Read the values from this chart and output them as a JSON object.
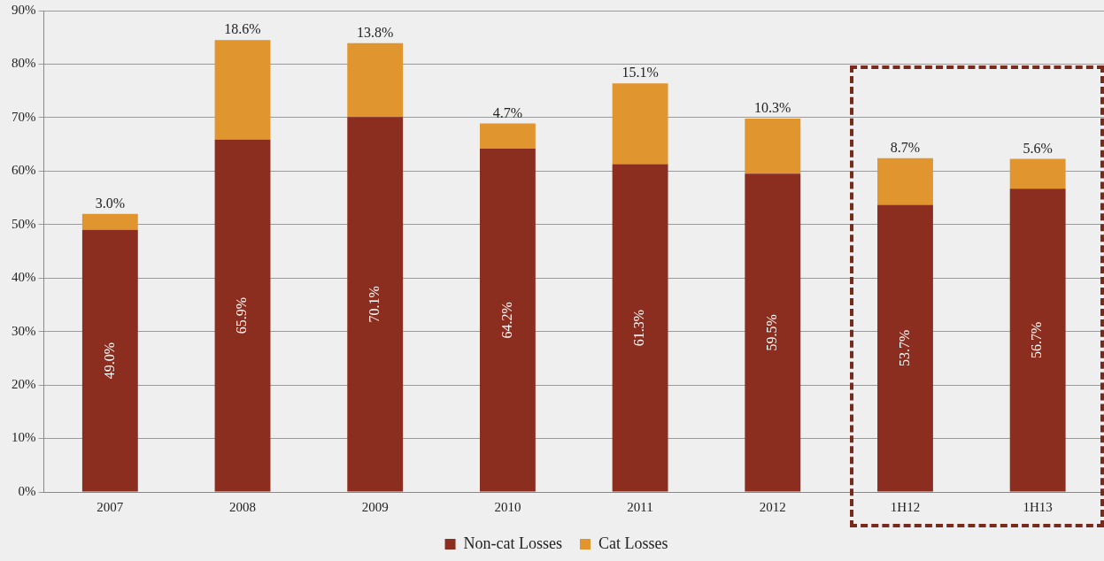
{
  "chart_data": {
    "type": "bar",
    "stacked": true,
    "categories": [
      "2007",
      "2008",
      "2009",
      "2010",
      "2011",
      "2012",
      "1H12",
      "1H13"
    ],
    "series": [
      {
        "name": "Non-cat Losses",
        "color": "#8b2e1f",
        "values": [
          49.0,
          65.9,
          70.1,
          64.2,
          61.3,
          59.5,
          53.7,
          56.7
        ],
        "value_labels": [
          "49.0%",
          "65.9%",
          "70.1%",
          "64.2%",
          "61.3%",
          "59.5%",
          "53.7%",
          "56.7%"
        ]
      },
      {
        "name": "Cat Losses",
        "color": "#e0952f",
        "values": [
          3.0,
          18.6,
          13.8,
          4.7,
          15.1,
          10.3,
          8.7,
          5.6
        ],
        "value_labels": [
          "3.0%",
          "18.6%",
          "13.8%",
          "4.7%",
          "15.1%",
          "10.3%",
          "8.7%",
          "5.6%"
        ]
      }
    ],
    "ylim": [
      0,
      90
    ],
    "yticks": [
      {
        "value": 0,
        "label": "0%"
      },
      {
        "value": 10,
        "label": "10%"
      },
      {
        "value": 20,
        "label": "20%"
      },
      {
        "value": 30,
        "label": "30%"
      },
      {
        "value": 40,
        "label": "40%"
      },
      {
        "value": 50,
        "label": "50%"
      },
      {
        "value": 60,
        "label": "60%"
      },
      {
        "value": 70,
        "label": "70%"
      },
      {
        "value": 80,
        "label": "80%"
      },
      {
        "value": 90,
        "label": "90%"
      }
    ],
    "grid": "y",
    "legend": "bottom"
  }
}
